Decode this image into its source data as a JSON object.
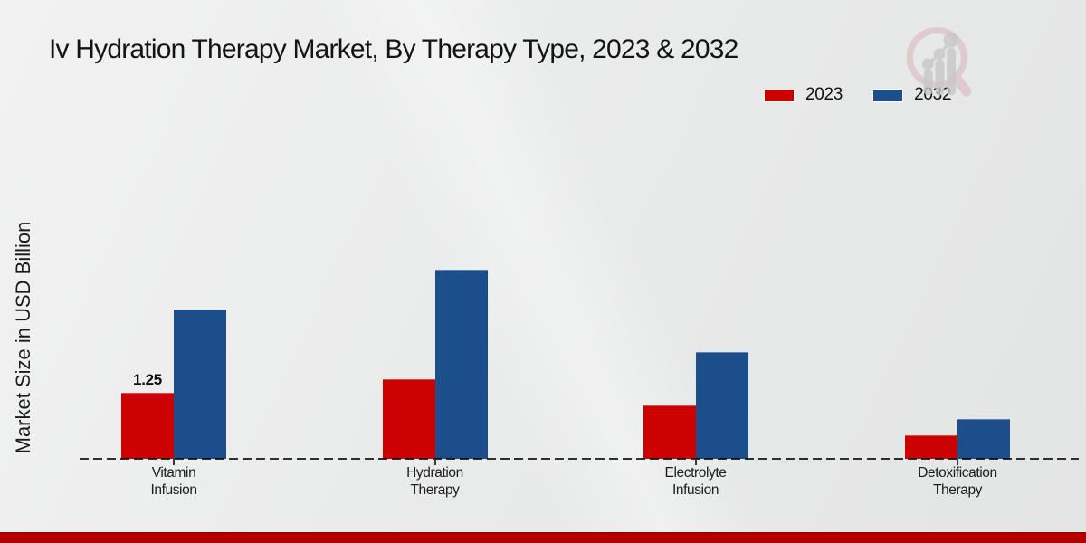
{
  "title": "Iv Hydration Therapy Market, By Therapy Type, 2023 & 2032",
  "ylabel": "Market Size in USD Billion",
  "legend": [
    {
      "label": "2023",
      "color": "#cc0101"
    },
    {
      "label": "2032",
      "color": "#1b4e8a"
    }
  ],
  "chart_data": {
    "type": "bar",
    "title": "Iv Hydration Therapy Market, By Therapy Type, 2023 & 2032",
    "xlabel": "",
    "ylabel": "Market Size in USD Billion",
    "categories": [
      "Vitamin Infusion",
      "Hydration Therapy",
      "Electrolyte Infusion",
      "Detoxification Therapy"
    ],
    "series": [
      {
        "name": "2023",
        "color": "#cc0101",
        "values": [
          1.25,
          1.5,
          1.0,
          0.45
        ]
      },
      {
        "name": "2032",
        "color": "#1b4e8a",
        "values": [
          2.8,
          3.55,
          2.0,
          0.75
        ]
      }
    ],
    "bar_labels": [
      {
        "series": "2023",
        "category": "Vitamin Infusion",
        "text": "1.25"
      }
    ],
    "ylim": [
      0,
      4
    ],
    "grid": false,
    "y_axis_ticks_visible": false,
    "legend_position": "top-right",
    "baseline_style": "dashed"
  },
  "footer": {
    "bar_color": "#b80000"
  },
  "logo": {
    "name": "magnifier-bar-chart-logo"
  }
}
